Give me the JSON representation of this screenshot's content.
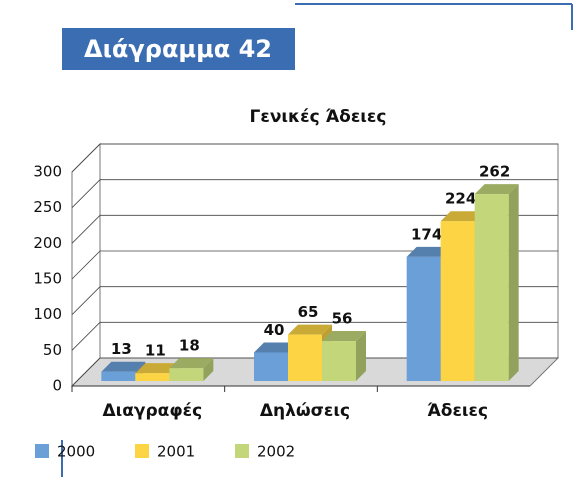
{
  "header": "Διάγραμμα 42",
  "chart_data": {
    "type": "bar3d",
    "title": "Γενικές Άδειες",
    "categories": [
      "Διαγραφές",
      "Δηλώσεις",
      "Άδειες"
    ],
    "series": [
      {
        "name": "2000",
        "color": "#6a9fd8",
        "values": [
          13,
          40,
          174
        ]
      },
      {
        "name": "2001",
        "color": "#fdd443",
        "values": [
          11,
          65,
          224
        ]
      },
      {
        "name": "2002",
        "color": "#c3d67a",
        "values": [
          18,
          56,
          262
        ]
      }
    ],
    "ylim": [
      0,
      300
    ],
    "yticks": [
      0,
      50,
      100,
      150,
      200,
      250,
      300
    ],
    "grid": true
  }
}
